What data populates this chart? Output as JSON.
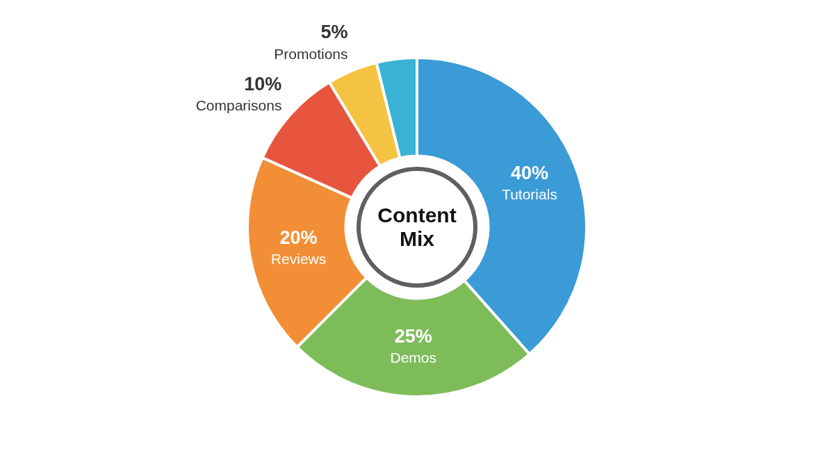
{
  "chart_data": {
    "type": "donut",
    "title": "Content Mix",
    "categories": [
      "Tutorials",
      "Demos",
      "Reviews",
      "Comparisons",
      "Promotions",
      null
    ],
    "values": [
      40,
      25,
      20,
      10,
      5,
      4
    ],
    "value_labels": [
      "40%",
      "25%",
      "20%",
      "10%",
      "5%",
      null
    ],
    "colors": [
      "#3a9bd6",
      "#7ebc5a",
      "#f28f36",
      "#e8553f",
      "#f5c342",
      "#3ab2d6"
    ]
  }
}
